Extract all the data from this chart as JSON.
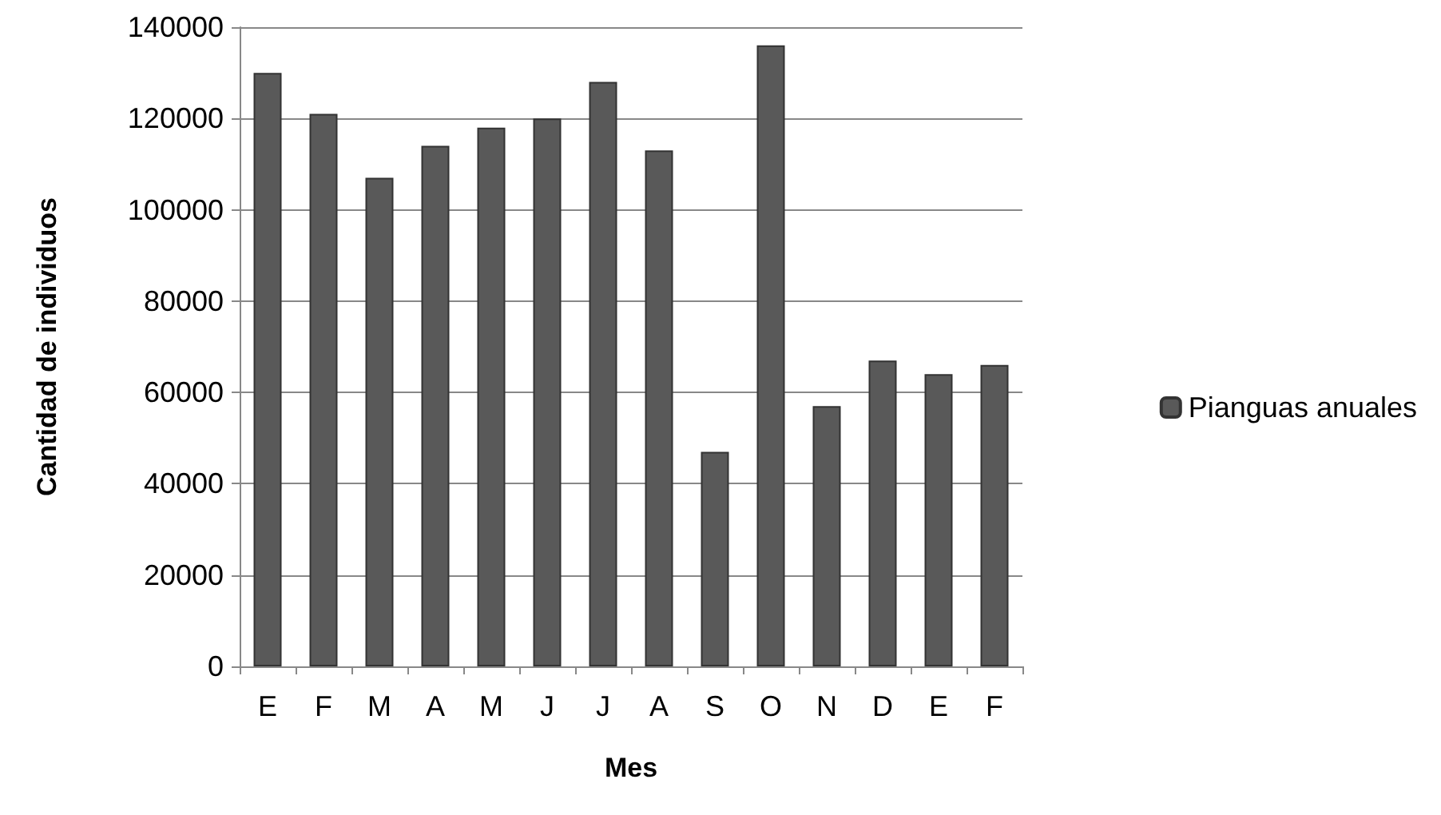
{
  "chart_data": {
    "type": "bar",
    "xlabel": "Mes",
    "ylabel": "Cantidad de individuos",
    "categories": [
      "E",
      "F",
      "M",
      "A",
      "M",
      "J",
      "J",
      "A",
      "S",
      "O",
      "N",
      "D",
      "E",
      "F"
    ],
    "series": [
      {
        "name": "Pianguas anuales",
        "color": "#595959",
        "values": [
          130000,
          121000,
          107000,
          114000,
          118000,
          120000,
          128000,
          113000,
          47000,
          136000,
          57000,
          67000,
          64000,
          66000
        ]
      }
    ],
    "ylim": [
      0,
      140000
    ],
    "yticks": [
      0,
      20000,
      40000,
      60000,
      80000,
      100000,
      120000,
      140000
    ],
    "grid": "y",
    "legend": "right"
  }
}
